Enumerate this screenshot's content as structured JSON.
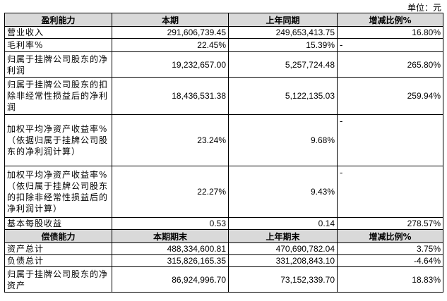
{
  "unit_label": "单位：元",
  "profit_section": {
    "headers": [
      "盈利能力",
      "本期",
      "上年同期",
      "增减比例%"
    ],
    "rows": [
      {
        "label": "营业收入",
        "current": "291,606,739.45",
        "previous": "249,653,413.75",
        "change": "16.80%"
      },
      {
        "label": "毛利率%",
        "current": "22.45%",
        "previous": "15.39%",
        "change": "-"
      },
      {
        "label": "归属于挂牌公司股东的净利润",
        "current": "19,232,657.00",
        "previous": "5,257,724.48",
        "change": "265.80%"
      },
      {
        "label": "归属于挂牌公司股东的扣除非经常性损益后的净利润",
        "current": "18,436,531.38",
        "previous": "5,122,135.03",
        "change": "259.94%"
      },
      {
        "label": "加权平均净资产收益率%（依据归属于挂牌公司股东的净利润计算）",
        "current": "23.24%",
        "previous": "9.68%",
        "change": "-"
      },
      {
        "label": "加权平均净资产收益率%（依归属于挂牌公司股东的扣除非经常性损益后的净利润计算）",
        "current": "22.27%",
        "previous": "9.43%",
        "change": "-"
      },
      {
        "label": "基本每股收益",
        "current": "0.53",
        "previous": "0.14",
        "change": "278.57%"
      }
    ]
  },
  "debt_section": {
    "headers": [
      "偿债能力",
      "本期期末",
      "上年期末",
      "增减比例%"
    ],
    "rows": [
      {
        "label": "资产总计",
        "current": "488,334,600.81",
        "previous": "470,690,782.04",
        "change": "3.75%"
      },
      {
        "label": "负债总计",
        "current": "315,826,165.35",
        "previous": "331,208,843.10",
        "change": "-4.64%"
      },
      {
        "label": "归属于挂牌公司股东的净资产",
        "current": "86,924,996.70",
        "previous": "73,152,339.70",
        "change": "18.83%"
      }
    ]
  }
}
